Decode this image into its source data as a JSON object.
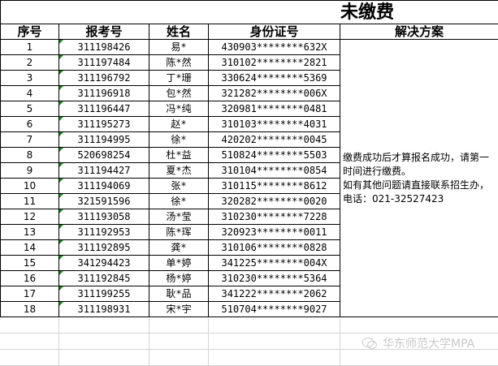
{
  "title": "未缴费",
  "headers": [
    "序号",
    "报考号",
    "姓名",
    "身份证号",
    "解决方案"
  ],
  "rows": [
    [
      "1",
      "311198426",
      "易*",
      "430903********632X"
    ],
    [
      "2",
      "311197484",
      "陈*然",
      "310102********2821"
    ],
    [
      "3",
      "311196792",
      "丁*珊",
      "330624********5369"
    ],
    [
      "4",
      "311196918",
      "包*然",
      "321282********006X"
    ],
    [
      "5",
      "311196447",
      "冯*纯",
      "320981********0481"
    ],
    [
      "6",
      "311195273",
      "赵*",
      "310103********4031"
    ],
    [
      "7",
      "311194995",
      "徐*",
      "420202********0045"
    ],
    [
      "8",
      "520698254",
      "杜*益",
      "510824********5503"
    ],
    [
      "9",
      "311194427",
      "夏*杰",
      "310104********0854"
    ],
    [
      "10",
      "311194069",
      "张*",
      "310115********8612"
    ],
    [
      "11",
      "321591596",
      "徐*",
      "320282********0020"
    ],
    [
      "12",
      "311193058",
      "汤*莹",
      "310230********7228"
    ],
    [
      "13",
      "311192953",
      "陈*珲",
      "320923********0011"
    ],
    [
      "14",
      "311192895",
      "龚*",
      "310106********0828"
    ],
    [
      "15",
      "341294423",
      "单*婷",
      "341225********004X"
    ],
    [
      "16",
      "311192845",
      "杨*婷",
      "310230********5364"
    ],
    [
      "17",
      "311199255",
      "耿*品",
      "341222********2062"
    ],
    [
      "18",
      "311198931",
      "宋*宇",
      "510704********9027"
    ]
  ],
  "solution": "缴费成功后才算报名成功，请第一时间进行缴费。\n如有其他问题请直接联系招生办，电话：021-32527423",
  "watermark": "华东师范大学MPA",
  "colors": {
    "cell_flag": "#1a8a1a",
    "gridline": "#d4d4d4"
  }
}
